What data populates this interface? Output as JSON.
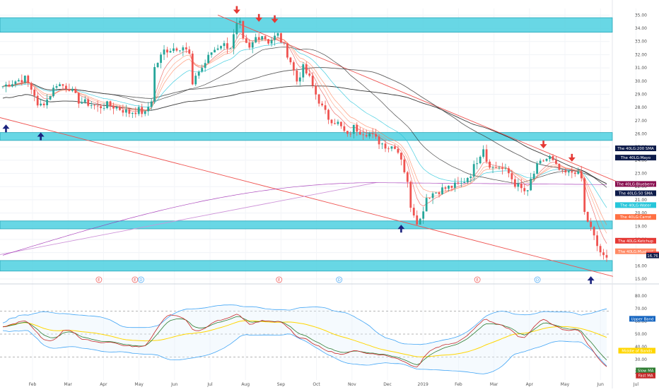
{
  "chart_data": [
    {
      "type": "candlestick",
      "title": "",
      "x_labels": [
        "Feb",
        "Mar",
        "Apr",
        "May",
        "Jun",
        "Jul",
        "Aug",
        "Sep",
        "Oct",
        "Nov",
        "Dec",
        "2019",
        "Feb",
        "Mar",
        "Apr",
        "May",
        "Jun",
        "Jul"
      ],
      "y_ticks": [
        "35.00",
        "34.00",
        "33.00",
        "32.00",
        "31.00",
        "30.00",
        "29.00",
        "28.00",
        "27.00",
        "26.00",
        "25.00",
        "24.00",
        "23.00",
        "22.00",
        "21.00",
        "20.00",
        "19.00",
        "18.00",
        "17.00",
        "16.00",
        "15.00"
      ],
      "ylim": [
        15,
        35.5
      ],
      "x_range": [
        0,
        100
      ],
      "price_path": [
        [
          0,
          29.6
        ],
        [
          4,
          30.0
        ],
        [
          7,
          30.2
        ],
        [
          10,
          29.0
        ],
        [
          11,
          28.0
        ],
        [
          14,
          28.6
        ],
        [
          17,
          29.8
        ],
        [
          21,
          29.5
        ],
        [
          24,
          28.5
        ],
        [
          27,
          28.3
        ],
        [
          30,
          28.0
        ],
        [
          33,
          28.2
        ],
        [
          36,
          28.0
        ],
        [
          40,
          27.6
        ],
        [
          43,
          27.8
        ],
        [
          45,
          27.5
        ],
        [
          47,
          28.6
        ],
        [
          48,
          31.0
        ],
        [
          51,
          32.3
        ],
        [
          54,
          32.5
        ],
        [
          57,
          32.6
        ],
        [
          59,
          32.0
        ],
        [
          60,
          29.5
        ],
        [
          61,
          30.5
        ],
        [
          63,
          31.0
        ],
        [
          66,
          32.2
        ],
        [
          69,
          32.8
        ],
        [
          72,
          32.6
        ],
        [
          74,
          34.2
        ],
        [
          75,
          34.3
        ],
        [
          76,
          33.0
        ],
        [
          78,
          32.4
        ],
        [
          80,
          33.3
        ],
        [
          82,
          33.5
        ],
        [
          84,
          33.0
        ],
        [
          87,
          33.5
        ],
        [
          89,
          32.6
        ],
        [
          91,
          31.5
        ],
        [
          93,
          30.0
        ],
        [
          95,
          31.0
        ],
        [
          97,
          30.2
        ],
        [
          99,
          29.0
        ],
        [
          101,
          28.0
        ],
        [
          103,
          27.2
        ],
        [
          106,
          26.8
        ],
        [
          109,
          25.8
        ],
        [
          111,
          26.5
        ],
        [
          113,
          26.2
        ],
        [
          116,
          26.0
        ],
        [
          119,
          25.4
        ],
        [
          122,
          25.0
        ],
        [
          124,
          25.1
        ],
        [
          126,
          24.2
        ],
        [
          128,
          22.2
        ],
        [
          129,
          20.6
        ],
        [
          131,
          19.4
        ],
        [
          132,
          19.5
        ],
        [
          134,
          21.2
        ],
        [
          136,
          21.5
        ],
        [
          139,
          21.8
        ],
        [
          142,
          22.0
        ],
        [
          145,
          22.2
        ],
        [
          148,
          23.0
        ],
        [
          150,
          24.0
        ],
        [
          152,
          25.0
        ],
        [
          153,
          24.0
        ],
        [
          155,
          23.4
        ],
        [
          157,
          23.5
        ],
        [
          160,
          23.0
        ],
        [
          162,
          22.2
        ],
        [
          164,
          21.8
        ],
        [
          166,
          21.5
        ],
        [
          167,
          22.5
        ],
        [
          169,
          23.5
        ],
        [
          171,
          24.0
        ],
        [
          173,
          24.2
        ],
        [
          175,
          23.5
        ],
        [
          177,
          23.0
        ],
        [
          179,
          23.0
        ],
        [
          181,
          23.2
        ],
        [
          183,
          22.6
        ],
        [
          184,
          20.0
        ],
        [
          186,
          18.8
        ],
        [
          188,
          17.5
        ],
        [
          190,
          16.6
        ],
        [
          191,
          16.5
        ]
      ],
      "candles": 192,
      "overlays": {
        "moving_averages": [
          {
            "name": "200 SMA",
            "color": "#1a1a1a",
            "kind": "slow"
          },
          {
            "name": "Mayo",
            "color": "#444444",
            "kind": "slow"
          },
          {
            "name": "Blueberry",
            "color": "#9c27b0",
            "kind": "flat"
          },
          {
            "name": "50 SMA",
            "color": "#2e2e2e",
            "kind": "medium"
          },
          {
            "name": "Water",
            "color": "#26c6da",
            "kind": "medium"
          },
          {
            "name": "Carrot",
            "color": "#ff7043",
            "kind": "fast"
          },
          {
            "name": "Ketchup",
            "color": "#e53935",
            "kind": "fast"
          },
          {
            "name": "Mustard",
            "color": "#ff8a65",
            "kind": "fast"
          }
        ],
        "support_zones": [
          [
            33.7,
            34.8
          ],
          [
            25.5,
            26.1
          ],
          [
            18.8,
            19.4
          ],
          [
            15.6,
            16.4
          ]
        ],
        "trendlines": [
          {
            "from": [
              -2,
              27.3
            ],
            "to": [
              193,
              15.2
            ],
            "color": "#ef5350"
          },
          {
            "from": [
              68,
              35.0
            ],
            "to": [
              196,
              22.2
            ],
            "color": "#ef5350"
          },
          {
            "from": [
              -2,
              16.8
            ],
            "to": [
              118,
              22.3
            ],
            "color": "#ce93d8"
          }
        ],
        "arrows_down": [
          [
            74,
            35.2
          ],
          [
            81,
            34.6
          ],
          [
            86,
            34.5
          ],
          [
            171,
            25.0
          ],
          [
            180,
            24.0
          ]
        ],
        "arrows_up": [
          [
            1,
            26.6
          ],
          [
            12,
            26.0
          ],
          [
            126,
            19.0
          ],
          [
            186,
            15.1
          ]
        ],
        "event_markers": [
          {
            "x": 16,
            "letter": "E",
            "color": "#ef5350"
          },
          {
            "x": 22,
            "letter": "E",
            "color": "#ef5350"
          },
          {
            "x": 23,
            "letter": "D",
            "color": "#42a5f5"
          },
          {
            "x": 46,
            "letter": "E",
            "color": "#ef5350"
          },
          {
            "x": 56,
            "letter": "D",
            "color": "#42a5f5"
          },
          {
            "x": 79,
            "letter": "E",
            "color": "#ef5350"
          },
          {
            "x": 89,
            "letter": "D",
            "color": "#42a5f5"
          },
          {
            "x": 123,
            "letter": "D",
            "color": "#42a5f5"
          },
          {
            "x": 131,
            "letter": "E",
            "color": "#ef5350"
          },
          {
            "x": 146,
            "letter": "E",
            "color": "#ef5350"
          },
          {
            "x": 156,
            "letter": "D",
            "color": "#42a5f5"
          }
        ]
      },
      "legend_tags": [
        {
          "label": "The 40LG:200 SMA",
          "value": 24.9,
          "bg": "#0d1b4a"
        },
        {
          "label": "The 40LG:Mayo",
          "value": 24.2,
          "bg": "#0d1b4a"
        },
        {
          "label": "The 40LG:Blueberry",
          "value": 22.2,
          "bg": "#880e4f"
        },
        {
          "label": "The 40LG:50 SMA",
          "value": 21.5,
          "bg": "#0d1b4a"
        },
        {
          "label": "The 40LG:Water",
          "value": 20.6,
          "bg": "#26c6da"
        },
        {
          "label": "The 40LG:Carrot",
          "value": 19.7,
          "bg": "#ff7043"
        },
        {
          "label": "The 40LG:Ketchup",
          "value": 17.9,
          "bg": "#e53935"
        },
        {
          "label": "The 40LG:Mustard",
          "value": 17.1,
          "bg": "#ff8a65"
        }
      ],
      "price_tags": [
        {
          "text": "16.86",
          "value": 16.86,
          "bg": "#e53935"
        },
        {
          "text": "16.76",
          "value": 16.76,
          "bg": "#0d1b4a"
        }
      ]
    },
    {
      "type": "line",
      "title": "",
      "y_ticks": [
        "80.00",
        "70.00",
        "60.00",
        "50.00",
        "40.00",
        "30.00",
        "20.00"
      ],
      "ylim": [
        14,
        86
      ],
      "dashed_levels": [
        68,
        50,
        32
      ],
      "rsi_path": [
        [
          0,
          55
        ],
        [
          4,
          60
        ],
        [
          7,
          62
        ],
        [
          10,
          48
        ],
        [
          13,
          42
        ],
        [
          16,
          47
        ],
        [
          19,
          56
        ],
        [
          21,
          54
        ],
        [
          24,
          45
        ],
        [
          27,
          44
        ],
        [
          30,
          42
        ],
        [
          33,
          44
        ],
        [
          36,
          42
        ],
        [
          39,
          40
        ],
        [
          42,
          40
        ],
        [
          45,
          42
        ],
        [
          47,
          52
        ],
        [
          49,
          62
        ],
        [
          51,
          68
        ],
        [
          54,
          65
        ],
        [
          57,
          62
        ],
        [
          60,
          48
        ],
        [
          63,
          54
        ],
        [
          66,
          62
        ],
        [
          69,
          61
        ],
        [
          72,
          64
        ],
        [
          74,
          68
        ],
        [
          76,
          58
        ],
        [
          78,
          55
        ],
        [
          80,
          60
        ],
        [
          82,
          62
        ],
        [
          85,
          58
        ],
        [
          87,
          60
        ],
        [
          89,
          55
        ],
        [
          91,
          50
        ],
        [
          93,
          44
        ],
        [
          95,
          48
        ],
        [
          97,
          42
        ],
        [
          99,
          40
        ],
        [
          101,
          36
        ],
        [
          104,
          35
        ],
        [
          107,
          33
        ],
        [
          110,
          37
        ],
        [
          113,
          36
        ],
        [
          116,
          35
        ],
        [
          119,
          34
        ],
        [
          122,
          32
        ],
        [
          125,
          30
        ],
        [
          128,
          25
        ],
        [
          131,
          24
        ],
        [
          133,
          38
        ],
        [
          135,
          40
        ],
        [
          138,
          42
        ],
        [
          141,
          43
        ],
        [
          144,
          46
        ],
        [
          147,
          53
        ],
        [
          150,
          60
        ],
        [
          152,
          66
        ],
        [
          154,
          58
        ],
        [
          157,
          56
        ],
        [
          160,
          52
        ],
        [
          163,
          45
        ],
        [
          165,
          48
        ],
        [
          167,
          57
        ],
        [
          169,
          62
        ],
        [
          171,
          63
        ],
        [
          173,
          57
        ],
        [
          176,
          52
        ],
        [
          179,
          53
        ],
        [
          182,
          53
        ],
        [
          184,
          40
        ],
        [
          186,
          34
        ],
        [
          188,
          26
        ],
        [
          190,
          24
        ],
        [
          191,
          22
        ]
      ],
      "series": [
        {
          "name": "Upper Band",
          "color": "#42a5f5"
        },
        {
          "name": "Middle of Bands",
          "color": "#ffd600"
        },
        {
          "name": "Slow MA",
          "color": "#2e7d32"
        },
        {
          "name": "Fast MA",
          "color": "#c62828"
        }
      ],
      "legend_tags": [
        {
          "label": "Upper Band",
          "value": 62,
          "bg": "#1565c0"
        },
        {
          "label": "Middle of Bands",
          "value": 37,
          "bg": "#ffd600",
          "fg": "#333333"
        },
        {
          "label": "Slow MA",
          "value": 21.5,
          "bg": "#2e7d32"
        },
        {
          "label": "Fast MA",
          "value": 17.5,
          "bg": "#c62828"
        }
      ]
    }
  ]
}
